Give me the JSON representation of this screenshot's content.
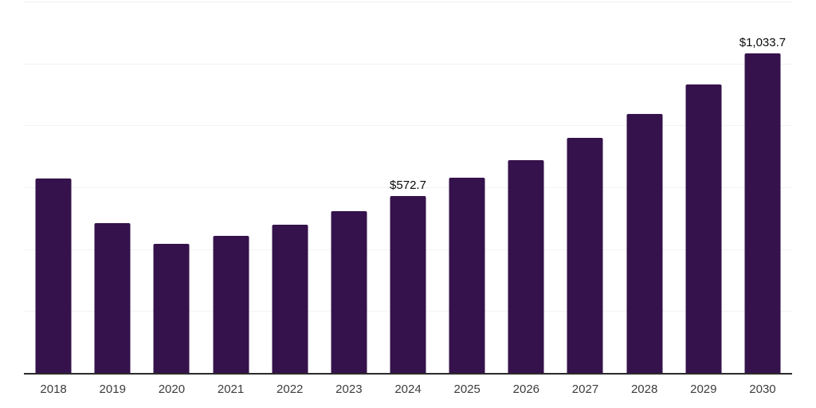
{
  "chart_data": {
    "type": "bar",
    "title": "",
    "xlabel": "",
    "ylabel": "",
    "categories": [
      "2018",
      "2019",
      "2020",
      "2021",
      "2022",
      "2023",
      "2024",
      "2025",
      "2026",
      "2027",
      "2028",
      "2029",
      "2030"
    ],
    "values": [
      628.0,
      484.0,
      416.4,
      443.2,
      480.2,
      523.6,
      572.7,
      629.7,
      687.2,
      758.7,
      837.9,
      932.4,
      1033.7
    ],
    "labeled_points": [
      {
        "category": "2024",
        "label": "$572.7"
      },
      {
        "category": "2030",
        "label": "$1,033.7"
      }
    ],
    "ylim": [
      0,
      1200
    ],
    "grid_step": 200,
    "grid": true,
    "legend": false,
    "colors": {
      "bar": "#35124b",
      "axis_line": "#2b2b2b",
      "gridline": "#f2f2f2",
      "data_label": "#0a0a0a",
      "tick_label": "#3c3c3c",
      "background": "#ffffff"
    }
  }
}
